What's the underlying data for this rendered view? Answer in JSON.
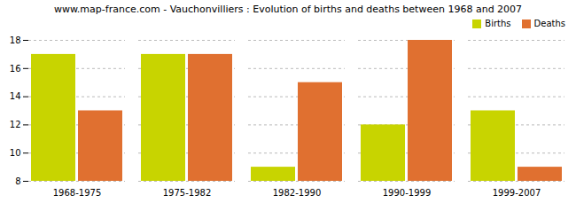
{
  "chart_data": {
    "type": "bar",
    "title": "www.map-france.com - Vauchonvilliers : Evolution of births and deaths between 1968 and 2007",
    "categories": [
      "1968-1975",
      "1975-1982",
      "1982-1990",
      "1990-1999",
      "1999-2007"
    ],
    "series": [
      {
        "name": "Births",
        "color": "#c8d400",
        "values": [
          17,
          17,
          9,
          12,
          13
        ]
      },
      {
        "name": "Deaths",
        "color": "#e07030",
        "values": [
          13,
          17,
          15,
          18,
          9
        ]
      }
    ],
    "ylim": [
      8,
      18
    ],
    "yticks": [
      8,
      10,
      12,
      14,
      16,
      18
    ],
    "grid": true,
    "legend": "upper right"
  }
}
